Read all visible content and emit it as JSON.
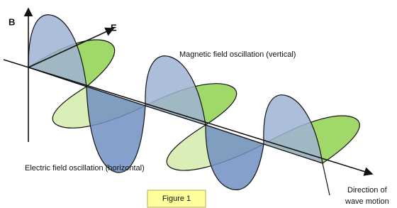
{
  "labels": {
    "b_axis": "B",
    "e_axis": "E",
    "magnetic": "Magnetic field oscillation (vertical)",
    "electric": "Electric field oscillation (horizontal)",
    "direction_line1": "Direction of",
    "direction_line2": "wave motion"
  },
  "caption": "Figure 1"
}
